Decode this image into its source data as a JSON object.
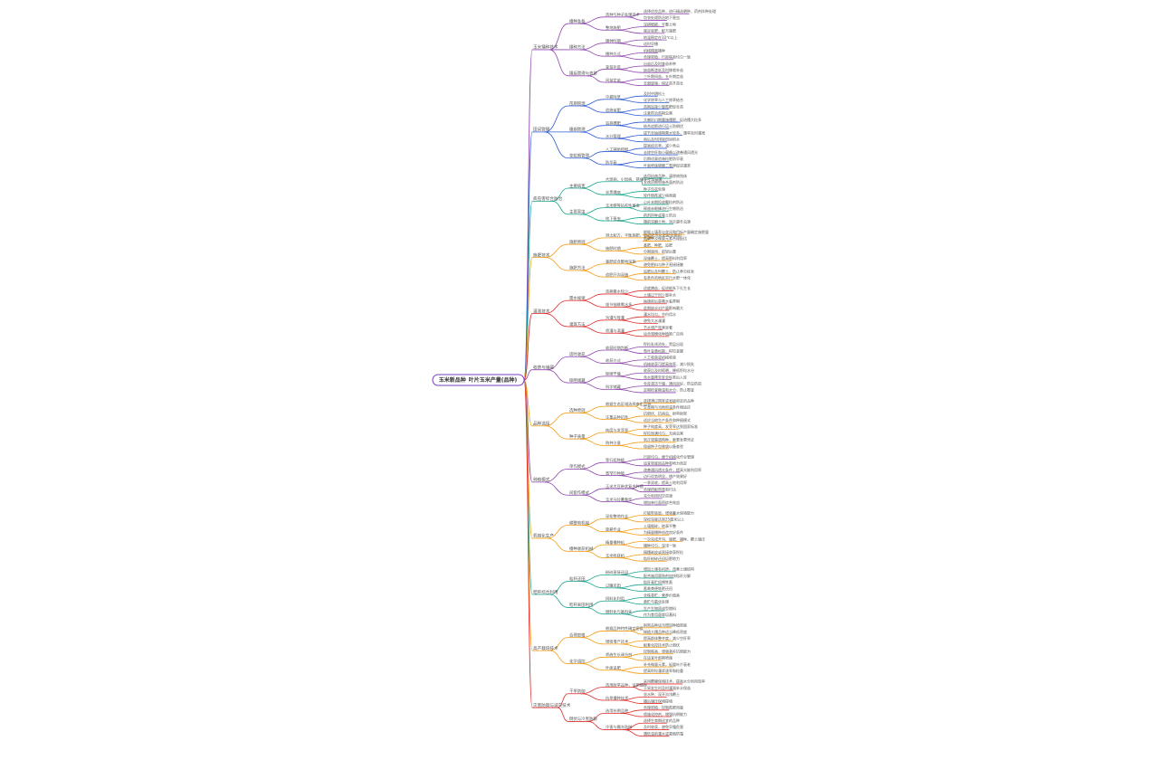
{
  "root": {
    "title": "玉米新品种",
    "detail": "叶片玉米产量(品种)",
    "color": "#7a3fbf"
  },
  "palette": [
    "#8e44ad",
    "#2d5bd7",
    "#17a58f",
    "#f39c12",
    "#e02b2b",
    "#8e44ad",
    "#f39c12",
    "#8e44ad",
    "#f39c12",
    "#17a58f",
    "#f39c12",
    "#e02b2b"
  ],
  "sections": [
    {
      "label": "玉米播种技术",
      "groups": [
        {
          "label": "播种准备",
          "subs": [
            {
              "label": "选种与种子处理技术",
              "leaves": [
                "选择优良品种，进行精选晒种，药剂拌种处理",
                "包衣处理防治地下害虫"
              ]
            },
            {
              "label": "整地施肥",
              "leaves": [
                "深耕细耙，平整土地",
                "施足底肥，配方施肥"
              ]
            }
          ]
        },
        {
          "label": "播种方法",
          "subs": [
            {
              "label": "播种时期",
              "leaves": [
                "地温稳定在10℃以上",
                "适时早播"
              ]
            },
            {
              "label": "播种方式",
              "leaves": [
                "机械精量播种",
                "合理密植，行距株距均匀一致"
              ]
            }
          ]
        },
        {
          "label": "播后管理与查苗",
          "subs": [
            {
              "label": "查苗补苗",
              "leaves": [
                "出苗后及时查苗补种",
                "缺苗断垄处及时移栽补苗"
              ]
            },
            {
              "label": "间苗定苗",
              "leaves": [
                "三叶期间苗，五叶期定苗",
                "去弱留强，保证苗齐苗壮"
              ]
            }
          ]
        }
      ]
    },
    {
      "label": "田间管理",
      "groups": [
        {
          "label": "苗期管理",
          "subs": [
            {
              "label": "中耕除草",
              "leaves": [
                "及时中耕松土",
                "化学除草与人工除草结合"
              ]
            },
            {
              "label": "追施苗肥",
              "leaves": [
                "苗期追施少量氮肥促壮苗",
                "注意防治苗期虫害"
              ]
            }
          ]
        },
        {
          "label": "穗期管理",
          "subs": [
            {
              "label": "追施穗肥",
              "leaves": [
                "大喇叭口期重施穗肥，促进穗大粒多",
                "结合追肥进行培土防倒伏"
              ]
            },
            {
              "label": "水分管理",
              "leaves": [
                "拔节至抽雄期需水较多，遇旱及时灌溉",
                "雨后及时排除田间积水"
              ]
            }
          ]
        },
        {
          "label": "花粒期管理",
          "subs": [
            {
              "label": "人工辅助授粉",
              "leaves": [
                "提高结实率，减少秃尖",
                "去除空秆和小弱株以改善通风透光"
              ]
            },
            {
              "label": "防早衰",
              "leaves": [
                "后期适量追施粒肥防早衰",
                "叶面喷施磷酸二氢钾促进灌浆"
              ]
            }
          ]
        }
      ]
    },
    {
      "label": "病虫害综合防治",
      "groups": [
        {
          "label": "主要病害",
          "subs": [
            {
              "label": "大斑病、小斑病、锈病等叶部病害",
              "leaves": [
                "选用抗病品种，清除病残体",
                "发病初期喷施杀菌剂防治"
              ]
            },
            {
              "label": "丝黑穗病",
              "leaves": [
                "种子包衣处理",
                "轮作倒茬减少病原菌"
              ]
            }
          ]
        },
        {
          "label": "主要害虫",
          "subs": [
            {
              "label": "玉米螟等钻蛀性害虫",
              "leaves": [
                "心叶末期投放颗粒剂防治",
                "释放赤眼蜂进行生物防治"
              ]
            },
            {
              "label": "地下害虫",
              "leaves": [
                "药剂拌种或毒土防治",
                "播前深翻土地，消灭越冬虫源"
              ]
            }
          ]
        }
      ]
    },
    {
      "label": "施肥技术",
      "groups": [
        {
          "label": "施肥原则",
          "subs": [
            {
              "label": "测土配方，平衡施肥，有机肥与化肥配合施用",
              "leaves": [
                "根据土壤养分状况和目标产量确定施肥量",
                "氮磷钾及微量元素合理配比"
              ]
            },
            {
              "label": "施肥时期",
              "leaves": [
                "基肥、种肥、追肥",
                "分期施用，前轻后重"
              ]
            }
          ]
        },
        {
          "label": "施肥方法",
          "subs": [
            {
              "label": "基肥结合整地深施",
              "leaves": [
                "深施覆土，提高肥料利用率",
                "避免肥料与种子直接接触"
              ]
            },
            {
              "label": "追肥开沟深施",
              "leaves": [
                "追肥后及时覆土，防止养分挥发",
                "有条件的地区实行水肥一体化"
              ]
            }
          ]
        }
      ]
    },
    {
      "label": "灌溉技术",
      "groups": [
        {
          "label": "需水规律",
          "subs": [
            {
              "label": "苗期需水较少",
              "leaves": [
                "适度蹲苗，促进根系下扎生长",
                "土壤过干时少量补水"
              ]
            },
            {
              "label": "拔节抽雄需水多",
              "leaves": [
                "抽雄前后是需水临界期",
                "此期缺水对产量影响最大"
              ]
            }
          ]
        },
        {
          "label": "灌溉方法",
          "subs": [
            {
              "label": "沟灌与畦灌",
              "leaves": [
                "灌水均匀，节约用水",
                "避免大水漫灌"
              ]
            },
            {
              "label": "喷灌与滴灌",
              "leaves": [
                "节水增产效果显著",
                "适合规模化种植推广应用"
              ]
            }
          ]
        }
      ]
    },
    {
      "label": "收获与储藏",
      "groups": [
        {
          "label": "适时收获",
          "subs": [
            {
              "label": "收获时期判断",
              "leaves": [
                "籽粒乳线消失，黑层出现",
                "苞叶变黄松散，籽粒变硬"
              ]
            },
            {
              "label": "收获方式",
              "leaves": [
                "人工收获或机械收获",
                "机械收获可提高效率，减少损失"
              ]
            }
          ]
        },
        {
          "label": "晾晒储藏",
          "subs": [
            {
              "label": "晾晒干燥",
              "leaves": [
                "收获后及时晾晒，降低籽粒水分",
                "含水量降至安全标准后入库"
              ]
            },
            {
              "label": "科学储藏",
              "leaves": [
                "仓库清洁干燥，通风良好，防虫防鼠",
                "定期检查粮温和水分，防止霉变"
              ]
            }
          ]
        }
      ]
    },
    {
      "label": "品种选择",
      "groups": [
        {
          "label": "选种原则",
          "subs": [
            {
              "label": "根据生态区域选择审定品种",
              "leaves": [
                "选择通过国家或省级审定的品种",
                "生育期与当地积温条件相适应"
              ]
            },
            {
              "label": "注重品种抗性",
              "leaves": [
                "抗倒伏、抗病虫、耐旱耐密",
                "适应当地生产条件和种植模式"
              ]
            }
          ]
        },
        {
          "label": "种子质量",
          "subs": [
            {
              "label": "纯度与发芽率",
              "leaves": [
                "种子纯度高，发芽率达到国家标准",
                "籽粒饱满均匀，无病虫害"
              ]
            },
            {
              "label": "购种注意",
              "leaves": [
                "到正规渠道购种，索要发票凭证",
                "保留种子包装袋以备查验"
              ]
            }
          ]
        }
      ]
    },
    {
      "label": "种植模式",
      "groups": [
        {
          "label": "单作模式",
          "subs": [
            {
              "label": "等行距种植",
              "leaves": [
                "行距均匀，便于机械化作业管理",
                "适宜密度因品种和地力而定"
              ]
            },
            {
              "label": "宽窄行种植",
              "leaves": [
                "改善通风透光条件，提高光能利用率",
                "边行优势明显，增产效果好"
              ]
            }
          ]
        },
        {
          "label": "间套作模式",
          "subs": [
            {
              "label": "玉米大豆带状复合种植",
              "leaves": [
                "一季双收，提高土地利用率",
                "合理搭配带宽和行比"
              ]
            },
            {
              "label": "玉米马铃薯套作",
              "leaves": [
                "充分利用时空资源",
                "增加单位面积综合效益"
              ]
            }
          ]
        }
      ]
    },
    {
      "label": "机械化生产",
      "groups": [
        {
          "label": "耕整地机械",
          "subs": [
            {
              "label": "深松整地作业",
              "leaves": [
                "打破犁底层，增强蓄水保墒能力",
                "深松深度达到25厘米以上"
              ]
            },
            {
              "label": "旋耕作业",
              "leaves": [
                "土壤细碎，地表平整",
                "为精量播种创造良好条件"
              ]
            }
          ]
        },
        {
          "label": "播种收获机械",
          "subs": [
            {
              "label": "精量播种机",
              "leaves": [
                "一次完成开沟、施肥、播种、覆土镇压",
                "播种均匀，深浅一致"
              ]
            },
            {
              "label": "玉米收获机",
              "leaves": [
                "摘穗剥皮或直接收获籽粒",
                "秸秆粉碎还田培肥地力"
              ]
            }
          ]
        }
      ]
    },
    {
      "label": "秸秆综合利用",
      "groups": [
        {
          "label": "秸秆还田",
          "subs": [
            {
              "label": "粉碎直接还田",
              "leaves": [
                "增加土壤有机质，改善土壤结构",
                "配合施用腐熟剂加快秸秆分解"
              ]
            },
            {
              "label": "过腹还田",
              "leaves": [
                "秸秆青贮饲喂牲畜",
                "畜禽粪便堆肥还田"
              ]
            }
          ]
        },
        {
          "label": "秸秆离田利用",
          "subs": [
            {
              "label": "饲料化利用",
              "leaves": [
                "全株青贮，营养价值高",
                "黄贮与氨化处理"
              ]
            },
            {
              "label": "燃料化与基料化",
              "leaves": [
                "生产生物质成型燃料",
                "作为食用菌栽培基料"
              ]
            }
          ]
        }
      ]
    },
    {
      "label": "高产栽培技术",
      "groups": [
        {
          "label": "合理密植",
          "subs": [
            {
              "label": "根据品种特性确定密度",
              "leaves": [
                "耐密品种适当增加种植密度",
                "稀植大穗品种适当降低密度"
              ]
            },
            {
              "label": "增密增产技术",
              "leaves": [
                "提高群体整齐度，减少空秆率",
                "配套化控技术防止倒伏"
              ]
            }
          ]
        },
        {
          "label": "化学调控",
          "subs": [
            {
              "label": "喷施生长调节剂",
              "leaves": [
                "控制株高，增强茎秆抗倒能力",
                "在适宜叶龄期喷施"
              ]
            },
            {
              "label": "叶面追肥",
              "leaves": [
                "补充微量元素，延缓叶片衰老",
                "提高籽粒灌浆速率和粒重"
              ]
            }
          ]
        }
      ]
    },
    {
      "label": "灾害防御与减灾技术",
      "groups": [
        {
          "label": "干旱防御",
          "subs": [
            {
              "label": "选用耐旱品种，适期播种",
              "leaves": [
                "采用覆膜保墒技术，提高水分利用效率",
                "干旱发生时及时灌溉补水保苗"
              ]
            },
            {
              "label": "抗旱播种技术",
              "leaves": [
                "坐水种、深开沟浅覆土",
                "播后镇压保墒提墒"
              ]
            }
          ]
        },
        {
          "label": "倒伏与冷害防御",
          "subs": [
            {
              "label": "选用抗倒品种",
              "leaves": [
                "合理密植，控制氮肥用量",
                "喷施化控剂，增强抗倒能力"
              ]
            },
            {
              "label": "冷害与霜冻防御",
              "leaves": [
                "选择生育期适宜的品种",
                "及时收获，避免早霜危害",
                "遇低温前灌水或熏烟防霜"
              ]
            }
          ]
        }
      ]
    }
  ]
}
